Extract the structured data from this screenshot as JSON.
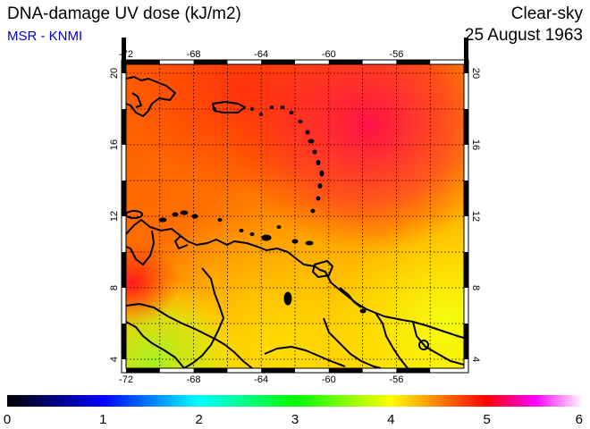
{
  "header": {
    "title": "DNA-damage UV dose (kJ/m2)",
    "credit": "MSR - KNMI",
    "condition": "Clear-sky",
    "date": "25 August 1963"
  },
  "map": {
    "region": "Caribbean Sea and northern South America",
    "lon_range": [
      -72,
      -52
    ],
    "lat_range": [
      3.5,
      20.5
    ],
    "lon_ticks": [
      -72,
      -68,
      -64,
      -60,
      -56
    ],
    "lat_ticks": [
      4,
      8,
      12,
      16,
      20
    ],
    "grid": "dotted",
    "field_pattern": "higher doses (red to magenta) in the north-east over the Atlantic; lower doses (orange to yellow, green near 4N) in the south over South America"
  },
  "colorbar": {
    "min": 0,
    "max": 6,
    "ticks": [
      "0",
      "1",
      "2",
      "3",
      "4",
      "5",
      "6"
    ],
    "colors": [
      "#000000",
      "#0000ff",
      "#00ffff",
      "#00ff00",
      "#ffff00",
      "#ff0000",
      "#ff00ff",
      "#ffffff"
    ]
  }
}
